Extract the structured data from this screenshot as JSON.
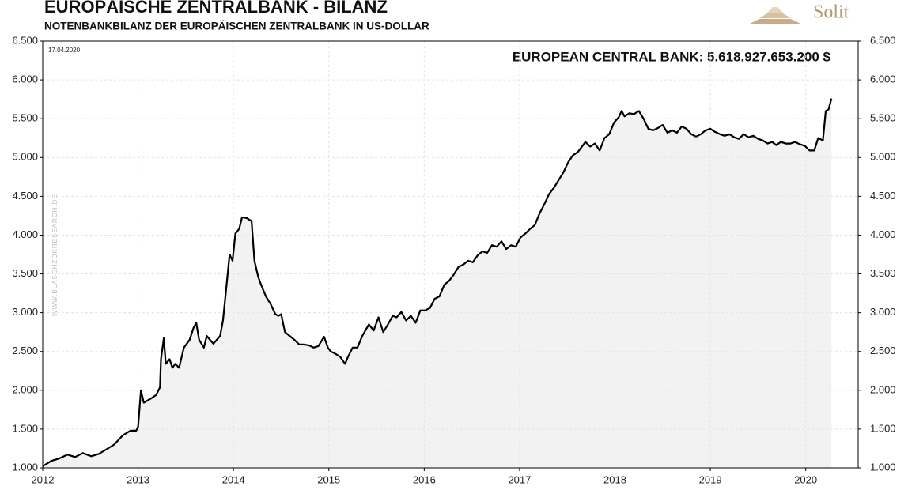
{
  "chart_data": {
    "type": "line",
    "title": "EUROPÄISCHE  ZENTRALBANK - BILANZ",
    "subtitle": "NOTENBANKBILANZ DER EUROPÄISCHEN ZENTRALBANK IN US-DOLLAR",
    "annotation": "EUROPEAN CENTRAL BANK: 5.618.927.653.200 $",
    "date": "17.04.2020",
    "source": "WWW.BLASCHZOKRESEARCH.DE",
    "logo": "Solit",
    "color": "#000000",
    "area_color": "#f2f2f2",
    "x": [
      2012.0,
      2012.09,
      2012.17,
      2012.26,
      2012.34,
      2012.42,
      2012.51,
      2012.59,
      2012.67,
      2012.75,
      2012.84,
      2012.92,
      2012.98,
      2013.0,
      2013.03,
      2013.06,
      2013.13,
      2013.19,
      2013.23,
      2013.24,
      2013.27,
      2013.29,
      2013.33,
      2013.36,
      2013.39,
      2013.43,
      2013.48,
      2013.54,
      2013.58,
      2013.61,
      2013.64,
      2013.69,
      2013.72,
      2013.79,
      2013.86,
      2013.89,
      2013.92,
      2013.96,
      2013.99,
      2014.02,
      2014.06,
      2014.09,
      2014.14,
      2014.19,
      2014.22,
      2014.26,
      2014.29,
      2014.34,
      2014.39,
      2014.44,
      2014.47,
      2014.5,
      2014.54,
      2014.59,
      2014.64,
      2014.69,
      2014.74,
      2014.79,
      2014.84,
      2014.89,
      2014.95,
      2014.99,
      2015.02,
      2015.07,
      2015.12,
      2015.17,
      2015.2,
      2015.25,
      2015.3,
      2015.35,
      2015.42,
      2015.47,
      2015.52,
      2015.57,
      2015.62,
      2015.67,
      2015.71,
      2015.76,
      2015.81,
      2015.86,
      2015.91,
      2015.96,
      2016.01,
      2016.06,
      2016.11,
      2016.16,
      2016.21,
      2016.26,
      2016.31,
      2016.36,
      2016.41,
      2016.46,
      2016.51,
      2016.56,
      2016.61,
      2016.66,
      2016.71,
      2016.76,
      2016.81,
      2016.86,
      2016.91,
      2016.96,
      2017.01,
      2017.06,
      2017.11,
      2017.16,
      2017.21,
      2017.26,
      2017.31,
      2017.36,
      2017.41,
      2017.46,
      2017.51,
      2017.56,
      2017.61,
      2017.66,
      2017.69,
      2017.74,
      2017.79,
      2017.84,
      2017.89,
      2017.94,
      2017.99,
      2018.04,
      2018.07,
      2018.1,
      2018.15,
      2018.2,
      2018.25,
      2018.3,
      2018.35,
      2018.4,
      2018.45,
      2018.5,
      2018.55,
      2018.6,
      2018.65,
      2018.7,
      2018.75,
      2018.8,
      2018.85,
      2018.9,
      2018.95,
      2019.0,
      2019.05,
      2019.1,
      2019.15,
      2019.2,
      2019.25,
      2019.3,
      2019.35,
      2019.4,
      2019.45,
      2019.5,
      2019.55,
      2019.6,
      2019.65,
      2019.69,
      2019.74,
      2019.79,
      2019.84,
      2019.89,
      2019.94,
      2019.99,
      2020.04,
      2020.09,
      2020.13,
      2020.18,
      2020.21,
      2020.24,
      2020.27
    ],
    "values": [
      1020,
      1090,
      1120,
      1170,
      1140,
      1190,
      1150,
      1180,
      1240,
      1300,
      1420,
      1480,
      1480,
      1530,
      2000,
      1840,
      1890,
      1940,
      2040,
      2400,
      2670,
      2340,
      2400,
      2290,
      2340,
      2290,
      2550,
      2650,
      2800,
      2870,
      2650,
      2550,
      2700,
      2600,
      2700,
      2900,
      3260,
      3750,
      3670,
      4020,
      4080,
      4230,
      4220,
      4180,
      3670,
      3460,
      3360,
      3210,
      3110,
      2980,
      2960,
      2980,
      2750,
      2700,
      2650,
      2590,
      2590,
      2580,
      2550,
      2570,
      2690,
      2550,
      2500,
      2470,
      2430,
      2340,
      2430,
      2550,
      2550,
      2700,
      2850,
      2770,
      2940,
      2750,
      2850,
      2960,
      2940,
      3010,
      2900,
      2960,
      2870,
      3030,
      3030,
      3060,
      3180,
      3210,
      3360,
      3410,
      3490,
      3590,
      3620,
      3670,
      3650,
      3740,
      3790,
      3770,
      3870,
      3850,
      3920,
      3820,
      3870,
      3850,
      3970,
      4020,
      4080,
      4130,
      4280,
      4400,
      4530,
      4610,
      4710,
      4810,
      4940,
      5030,
      5070,
      5150,
      5200,
      5140,
      5180,
      5090,
      5250,
      5300,
      5450,
      5520,
      5600,
      5530,
      5570,
      5560,
      5600,
      5500,
      5370,
      5350,
      5380,
      5420,
      5320,
      5350,
      5320,
      5400,
      5370,
      5300,
      5270,
      5300,
      5350,
      5370,
      5330,
      5300,
      5280,
      5300,
      5260,
      5240,
      5300,
      5260,
      5280,
      5240,
      5220,
      5180,
      5200,
      5160,
      5200,
      5180,
      5180,
      5200,
      5170,
      5150,
      5090,
      5090,
      5250,
      5220,
      5600,
      5620,
      5760
    ],
    "xlim": [
      2012,
      2020.55
    ],
    "xticks": [
      2012,
      2013,
      2014,
      2015,
      2016,
      2017,
      2018,
      2019,
      2020
    ],
    "ylim": [
      1000,
      6500
    ],
    "yticks": [
      {
        "value": 1000,
        "label": "1.000"
      },
      {
        "value": 1500,
        "label": "1.500"
      },
      {
        "value": 2000,
        "label": "2.000"
      },
      {
        "value": 2500,
        "label": "2.500"
      },
      {
        "value": 3000,
        "label": "3.000"
      },
      {
        "value": 3500,
        "label": "3.500"
      },
      {
        "value": 4000,
        "label": "4.000"
      },
      {
        "value": 4500,
        "label": "4.500"
      },
      {
        "value": 5000,
        "label": "5.000"
      },
      {
        "value": 5500,
        "label": "5.500"
      },
      {
        "value": 6000,
        "label": "6.000"
      },
      {
        "value": 6500,
        "label": "6.500"
      }
    ],
    "y2lim": [
      1000,
      6500
    ],
    "y2ticks": [
      {
        "value": 1000,
        "label": "1.000"
      },
      {
        "value": 1500,
        "label": "1.500"
      },
      {
        "value": 2000,
        "label": "2.000"
      },
      {
        "value": 2500,
        "label": "2.500"
      },
      {
        "value": 3000,
        "label": "3.000"
      },
      {
        "value": 3500,
        "label": "3.500"
      },
      {
        "value": 4000,
        "label": "4.000"
      },
      {
        "value": 4500,
        "label": "4.500"
      },
      {
        "value": 5000,
        "label": "5.000"
      },
      {
        "value": 5500,
        "label": "5.500"
      },
      {
        "value": 6000,
        "label": "6.000"
      },
      {
        "value": 6500,
        "label": "6.500"
      }
    ],
    "grid": true
  }
}
